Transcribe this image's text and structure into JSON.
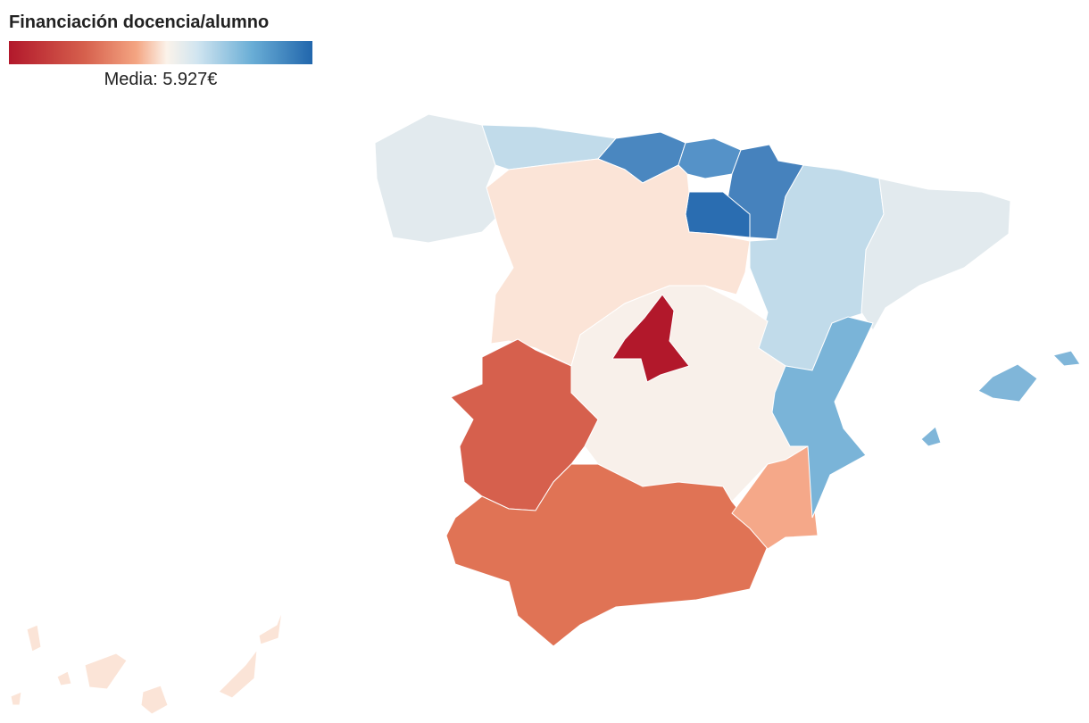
{
  "title": "Financiación docencia/alumno",
  "legend": {
    "label": "Media: 5.927€"
  }
}
